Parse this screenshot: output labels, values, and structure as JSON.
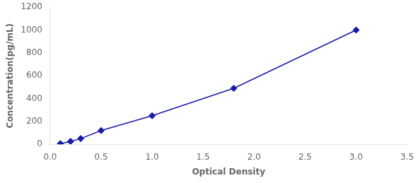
{
  "chart_data": {
    "type": "line",
    "x": [
      0.1,
      0.2,
      0.3,
      0.5,
      1.0,
      1.8,
      3.0
    ],
    "values": [
      6,
      25,
      50,
      120,
      250,
      490,
      1000
    ],
    "xlabel": "Optical Density",
    "ylabel": "Concentration(pg/mL)",
    "xlim": [
      0,
      3.5
    ],
    "ylim": [
      0,
      1200
    ],
    "xticks": [
      {
        "value": 0,
        "label": "0.0"
      },
      0.5,
      {
        "value": 1.0,
        "label": "1.0"
      },
      1.5,
      {
        "value": 2.0,
        "label": "2.0"
      },
      2.5,
      {
        "value": 3.0,
        "label": "3.0"
      },
      3.5
    ],
    "yticks": [
      0,
      200,
      400,
      600,
      800,
      1000,
      1200
    ],
    "color": "#1a1aaa",
    "marker": "diamond",
    "grid": false
  }
}
